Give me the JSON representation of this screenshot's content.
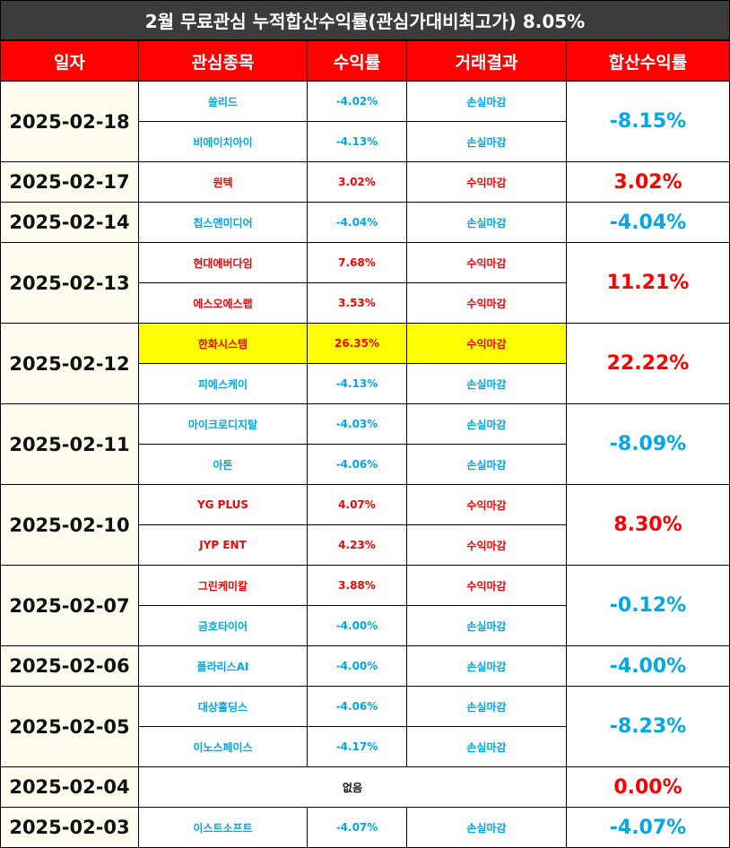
{
  "title": "2월 무료관심 누적합산수익률(관심가대비최고가) 8.05%",
  "headers": [
    "일자",
    "관심종목",
    "수익률",
    "거래결과",
    "합산수익률"
  ],
  "colors": {
    "profit": "#ff0000",
    "loss": "#00a8e8",
    "header_bg": "#ff0000",
    "title_bg": "#3c3c3c",
    "highlight": "#ffff00",
    "date_bg": "#fffdf0"
  },
  "groups": [
    {
      "date": "2025-02-18",
      "total": "-8.15%",
      "total_color": "blue",
      "rows": [
        {
          "stock": "쏠리드",
          "rate": "-4.02%",
          "result": "손실마감",
          "color": "blue"
        },
        {
          "stock": "비에이치아이",
          "rate": "-4.13%",
          "result": "손실마감",
          "color": "blue"
        }
      ]
    },
    {
      "date": "2025-02-17",
      "total": "3.02%",
      "total_color": "red",
      "rows": [
        {
          "stock": "원텍",
          "rate": "3.02%",
          "result": "수익마감",
          "color": "red"
        }
      ]
    },
    {
      "date": "2025-02-14",
      "total": "-4.04%",
      "total_color": "blue",
      "rows": [
        {
          "stock": "칩스앤미디어",
          "rate": "-4.04%",
          "result": "손실마감",
          "color": "blue"
        }
      ]
    },
    {
      "date": "2025-02-13",
      "total": "11.21%",
      "total_color": "red",
      "rows": [
        {
          "stock": "현대에버다임",
          "rate": "7.68%",
          "result": "수익마감",
          "color": "red"
        },
        {
          "stock": "에스오에스랩",
          "rate": "3.53%",
          "result": "수익마감",
          "color": "red"
        }
      ]
    },
    {
      "date": "2025-02-12",
      "total": "22.22%",
      "total_color": "red",
      "rows": [
        {
          "stock": "한화시스템",
          "rate": "26.35%",
          "result": "수익마감",
          "color": "red",
          "highlight": true
        },
        {
          "stock": "피에스케이",
          "rate": "-4.13%",
          "result": "손실마감",
          "color": "blue"
        }
      ]
    },
    {
      "date": "2025-02-11",
      "total": "-8.09%",
      "total_color": "blue",
      "rows": [
        {
          "stock": "마이크로디지탈",
          "rate": "-4.03%",
          "result": "손실마감",
          "color": "blue"
        },
        {
          "stock": "아톤",
          "rate": "-4.06%",
          "result": "손실마감",
          "color": "blue"
        }
      ]
    },
    {
      "date": "2025-02-10",
      "total": "8.30%",
      "total_color": "red",
      "rows": [
        {
          "stock": "YG PLUS",
          "rate": "4.07%",
          "result": "수익마감",
          "color": "red"
        },
        {
          "stock": "JYP ENT",
          "rate": "4.23%",
          "result": "수익마감",
          "color": "red"
        }
      ]
    },
    {
      "date": "2025-02-07",
      "total": "-0.12%",
      "total_color": "blue",
      "rows": [
        {
          "stock": "그린케미칼",
          "rate": "3.88%",
          "result": "수익마감",
          "color": "red"
        },
        {
          "stock": "금호타이어",
          "rate": "-4.00%",
          "result": "손실마감",
          "color": "blue"
        }
      ]
    },
    {
      "date": "2025-02-06",
      "total": "-4.00%",
      "total_color": "blue",
      "rows": [
        {
          "stock": "폴라리스AI",
          "rate": "-4.00%",
          "result": "손실마감",
          "color": "blue"
        }
      ]
    },
    {
      "date": "2025-02-05",
      "total": "-8.23%",
      "total_color": "blue",
      "rows": [
        {
          "stock": "대상홀딩스",
          "rate": "-4.06%",
          "result": "손실마감",
          "color": "blue"
        },
        {
          "stock": "이노스페이스",
          "rate": "-4.17%",
          "result": "손실마감",
          "color": "blue"
        }
      ]
    },
    {
      "date": "2025-02-04",
      "total": "0.00%",
      "total_color": "red",
      "rows": [
        {
          "none": "없음"
        }
      ]
    },
    {
      "date": "2025-02-03",
      "total": "-4.07%",
      "total_color": "blue",
      "rows": [
        {
          "stock": "이스트소프트",
          "rate": "-4.07%",
          "result": "손실마감",
          "color": "blue"
        }
      ]
    }
  ]
}
